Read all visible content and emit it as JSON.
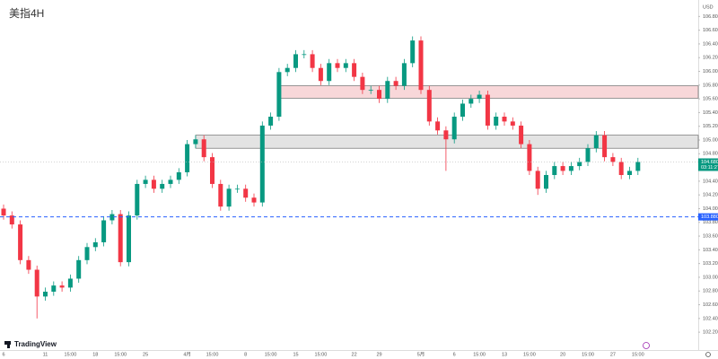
{
  "chart_data": {
    "type": "candlestick",
    "title": "美指4H",
    "currency": "USD",
    "brand": "TradingView",
    "up_color": "#089981",
    "down_color": "#f23645",
    "ylim": [
      101.94,
      107.04
    ],
    "yticks": [
      {
        "value": 102.2,
        "label": "102.200"
      },
      {
        "value": 102.4,
        "label": "102.400"
      },
      {
        "value": 102.6,
        "label": "102.600"
      },
      {
        "value": 102.8,
        "label": "102.800"
      },
      {
        "value": 103.0,
        "label": "103.000"
      },
      {
        "value": 103.2,
        "label": "103.200"
      },
      {
        "value": 103.4,
        "label": "103.400"
      },
      {
        "value": 103.6,
        "label": "103.600"
      },
      {
        "value": 103.8,
        "label": "103.800"
      },
      {
        "value": 104.0,
        "label": "104.000"
      },
      {
        "value": 104.2,
        "label": "104.200"
      },
      {
        "value": 104.4,
        "label": "104.400"
      },
      {
        "value": 104.6,
        "label": "104.600"
      },
      {
        "value": 104.8,
        "label": "104.800"
      },
      {
        "value": 105.0,
        "label": "105.000"
      },
      {
        "value": 105.2,
        "label": "105.200"
      },
      {
        "value": 105.4,
        "label": "105.400"
      },
      {
        "value": 105.6,
        "label": "105.600"
      },
      {
        "value": 105.8,
        "label": "105.800"
      },
      {
        "value": 106.0,
        "label": "106.000"
      },
      {
        "value": 106.2,
        "label": "106.200"
      },
      {
        "value": 106.4,
        "label": "106.400"
      },
      {
        "value": 106.6,
        "label": "106.600"
      },
      {
        "value": 106.8,
        "label": "106.800"
      }
    ],
    "categories": [
      "6",
      null,
      null,
      null,
      null,
      "11",
      null,
      null,
      "15:00",
      null,
      null,
      "18",
      null,
      null,
      "15:00",
      null,
      null,
      "25",
      null,
      null,
      null,
      null,
      "4月",
      null,
      null,
      "15:00",
      null,
      null,
      null,
      "8",
      null,
      null,
      "15:00",
      null,
      null,
      "15",
      null,
      null,
      "15:00",
      null,
      null,
      null,
      "22",
      null,
      null,
      "29",
      null,
      null,
      null,
      null,
      "5月",
      null,
      null,
      null,
      "6",
      null,
      null,
      "15:00",
      null,
      null,
      "13",
      null,
      null,
      "15:00",
      null,
      null,
      null,
      "20",
      null,
      null,
      "15:00",
      null,
      null,
      "27",
      null,
      null,
      "15:00"
    ],
    "candles": [
      [
        104.0,
        104.06,
        103.84,
        103.9
      ],
      [
        103.9,
        103.96,
        103.71,
        103.77
      ],
      [
        103.77,
        103.83,
        103.19,
        103.25
      ],
      [
        103.25,
        103.31,
        103.05,
        103.11
      ],
      [
        103.11,
        103.17,
        102.4,
        102.72
      ],
      [
        102.72,
        102.85,
        102.66,
        102.79
      ],
      [
        102.79,
        102.94,
        102.73,
        102.88
      ],
      [
        102.88,
        102.94,
        102.79,
        102.85
      ],
      [
        102.85,
        103.04,
        102.79,
        102.98
      ],
      [
        102.98,
        103.31,
        102.92,
        103.25
      ],
      [
        103.25,
        103.5,
        103.19,
        103.44
      ],
      [
        103.44,
        103.57,
        103.38,
        103.51
      ],
      [
        103.51,
        103.89,
        103.45,
        103.83
      ],
      [
        103.83,
        103.98,
        103.77,
        103.92
      ],
      [
        103.92,
        103.98,
        103.16,
        103.22
      ],
      [
        103.22,
        103.96,
        103.16,
        103.9
      ],
      [
        103.9,
        104.42,
        103.84,
        104.36
      ],
      [
        104.36,
        104.48,
        104.3,
        104.42
      ],
      [
        104.42,
        104.48,
        104.23,
        104.29
      ],
      [
        104.29,
        104.42,
        104.23,
        104.36
      ],
      [
        104.36,
        104.48,
        104.3,
        104.42
      ],
      [
        104.42,
        104.59,
        104.36,
        104.53
      ],
      [
        104.53,
        105.0,
        104.47,
        104.94
      ],
      [
        104.94,
        105.07,
        104.88,
        105.01
      ],
      [
        105.01,
        105.07,
        104.69,
        104.75
      ],
      [
        104.75,
        104.81,
        104.3,
        104.36
      ],
      [
        104.36,
        104.42,
        103.97,
        104.03
      ],
      [
        104.03,
        104.35,
        103.97,
        104.29
      ],
      [
        104.29,
        104.35,
        104.23,
        104.29
      ],
      [
        104.29,
        104.35,
        104.1,
        104.16
      ],
      [
        104.16,
        104.22,
        104.03,
        104.09
      ],
      [
        104.09,
        105.27,
        104.03,
        105.21
      ],
      [
        105.21,
        105.4,
        105.15,
        105.34
      ],
      [
        105.34,
        106.05,
        105.28,
        105.99
      ],
      [
        105.99,
        106.11,
        105.93,
        106.05
      ],
      [
        106.05,
        106.31,
        105.99,
        106.25
      ],
      [
        106.25,
        106.31,
        106.19,
        106.25
      ],
      [
        106.25,
        106.31,
        105.99,
        106.05
      ],
      [
        106.05,
        106.11,
        105.8,
        105.86
      ],
      [
        105.86,
        106.18,
        105.8,
        106.12
      ],
      [
        106.12,
        106.18,
        105.99,
        106.05
      ],
      [
        106.05,
        106.18,
        105.99,
        106.12
      ],
      [
        106.12,
        106.18,
        105.86,
        105.92
      ],
      [
        105.92,
        105.98,
        105.67,
        105.73
      ],
      [
        105.73,
        105.79,
        105.67,
        105.73
      ],
      [
        105.73,
        105.79,
        105.54,
        105.6
      ],
      [
        105.6,
        105.92,
        105.54,
        105.86
      ],
      [
        105.86,
        105.92,
        105.73,
        105.79
      ],
      [
        105.79,
        106.18,
        105.73,
        106.12
      ],
      [
        106.12,
        106.51,
        106.06,
        106.45
      ],
      [
        106.45,
        106.51,
        105.67,
        105.73
      ],
      [
        105.73,
        105.79,
        105.21,
        105.27
      ],
      [
        105.27,
        105.33,
        105.08,
        105.14
      ],
      [
        105.14,
        105.2,
        104.55,
        105.01
      ],
      [
        105.01,
        105.4,
        104.95,
        105.34
      ],
      [
        105.34,
        105.59,
        105.28,
        105.53
      ],
      [
        105.53,
        105.66,
        105.47,
        105.6
      ],
      [
        105.6,
        105.72,
        105.54,
        105.66
      ],
      [
        105.66,
        105.72,
        105.15,
        105.21
      ],
      [
        105.21,
        105.4,
        105.15,
        105.34
      ],
      [
        105.34,
        105.4,
        105.21,
        105.27
      ],
      [
        105.27,
        105.33,
        105.15,
        105.21
      ],
      [
        105.21,
        105.27,
        104.88,
        104.94
      ],
      [
        104.94,
        105.0,
        104.49,
        104.55
      ],
      [
        104.55,
        104.61,
        104.2,
        104.29
      ],
      [
        104.29,
        104.55,
        104.23,
        104.49
      ],
      [
        104.49,
        104.68,
        104.43,
        104.62
      ],
      [
        104.62,
        104.68,
        104.49,
        104.55
      ],
      [
        104.55,
        104.68,
        104.49,
        104.62
      ],
      [
        104.62,
        104.74,
        104.56,
        104.68
      ],
      [
        104.68,
        104.94,
        104.62,
        104.88
      ],
      [
        104.88,
        105.13,
        104.82,
        105.07
      ],
      [
        105.07,
        105.13,
        104.69,
        104.75
      ],
      [
        104.75,
        104.81,
        104.62,
        104.68
      ],
      [
        104.68,
        104.74,
        104.43,
        104.49
      ],
      [
        104.49,
        104.61,
        104.43,
        104.55
      ],
      [
        104.55,
        104.74,
        104.49,
        104.68
      ]
    ],
    "zones": [
      {
        "from": 33,
        "low": 105.61,
        "high": 105.79,
        "color": "#f8d7d9"
      },
      {
        "from": 23,
        "low": 104.88,
        "high": 105.07,
        "color": "#e3e3e3"
      }
    ],
    "level": {
      "value": 103.88,
      "label": "103.880",
      "color": "#2962ff"
    },
    "last_price": {
      "value": 104.68,
      "label": "104.680",
      "countdown": "03:11:27"
    }
  }
}
